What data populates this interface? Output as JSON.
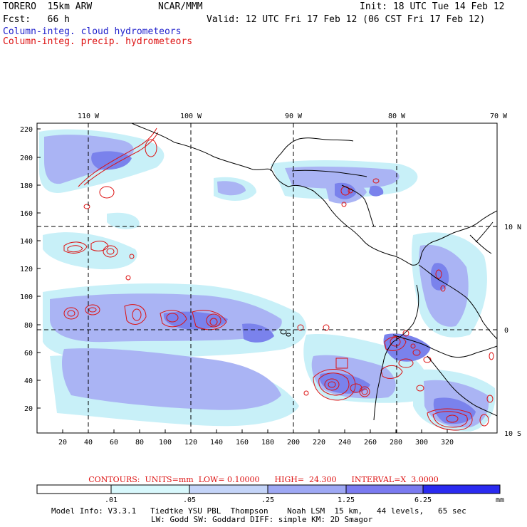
{
  "header": {
    "model": "TORERO  15km ARW",
    "org": "NCAR/MMM",
    "init": "Init: 18 UTC Tue 14 Feb 12",
    "fcst": "Fcst:   66 h",
    "valid": "Valid: 12 UTC Fri 17 Feb 12 (06 CST Fri 17 Feb 12)",
    "field1": "Column-integ. cloud hydrometeors",
    "field2": "Column-integ. precip. hydrometeors"
  },
  "map": {
    "lon_labels": [
      "110 W",
      "100 W",
      "90 W",
      "80 W",
      "70 W"
    ],
    "lat_labels": [
      "10 N",
      "0",
      "10 S"
    ],
    "y_ticks": [
      "220",
      "200",
      "180",
      "160",
      "140",
      "120",
      "100",
      "80",
      "60",
      "40",
      "20"
    ],
    "x_ticks": [
      "20",
      "40",
      "60",
      "80",
      "100",
      "120",
      "140",
      "160",
      "180",
      "200",
      "220",
      "240",
      "260",
      "280",
      "300",
      "320"
    ],
    "colors": {
      "land_line": "#000000",
      "cloud_light": "#c8f0f8",
      "cloud_mid": "#aab4f4",
      "cloud_dark": "#7a82ec",
      "precip_contour": "#dd1111"
    }
  },
  "contours": {
    "label": "CONTOURS:",
    "units": "UNITS=mm",
    "low": "LOW= 0.10000",
    "high": "HIGH=  24.300",
    "interval": "INTERVAL=X  3.0000"
  },
  "colorbar": {
    "labels": [
      ".01",
      ".05",
      ".25",
      "1.25",
      "6.25"
    ],
    "unit": "mm",
    "colors": [
      "#ffffff",
      "#d8f8fc",
      "#c4d4f8",
      "#9ea8f4",
      "#7a7af0",
      "#5050ee",
      "#2a2af0"
    ]
  },
  "footer": {
    "line1": "Model Info: V3.3.1   Tiedtke YSU PBL  Thompson    Noah LSM  15 km,   44 levels,   65 sec",
    "line2": "LW: Godd SW: Goddard DIFF: simple KM: 2D Smagor"
  }
}
